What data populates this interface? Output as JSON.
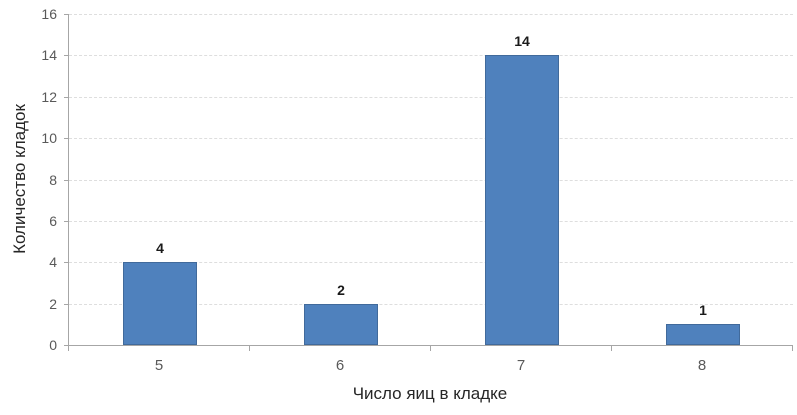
{
  "chart_data": {
    "type": "bar",
    "categories": [
      "5",
      "6",
      "7",
      "8"
    ],
    "values": [
      4,
      2,
      14,
      1
    ],
    "data_labels": [
      "4",
      "2",
      "14",
      "1"
    ],
    "title": "",
    "xlabel": "Число яиц в кладке",
    "ylabel": "Количество кладок",
    "ylim": [
      0,
      16
    ],
    "ytick_step": 2,
    "yticks": [
      0,
      2,
      4,
      6,
      8,
      10,
      12,
      14,
      16
    ],
    "grid": "horizontal-dashed",
    "legend": "none",
    "bar_color": "#4f81bd",
    "bar_border_color": "#416a9b",
    "axis_color": "#a6a6a6",
    "tick_label_color": "#595959",
    "gridline_color": "#dedede"
  }
}
